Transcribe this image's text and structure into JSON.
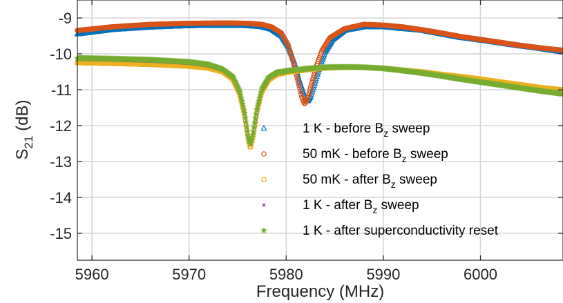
{
  "chart_data": {
    "type": "scatter",
    "xlabel": "Frequency (MHz)",
    "ylabel": {
      "main": "S",
      "sub": "21",
      "suffix": " (dB)"
    },
    "xlim": [
      5958.5,
      6008.5
    ],
    "ylim": [
      -15.75,
      -8.5
    ],
    "xticks": [
      5960,
      5970,
      5980,
      5990,
      6000
    ],
    "yticks": [
      -15,
      -14,
      -13,
      -12,
      -11,
      -10,
      -9
    ],
    "grid": true,
    "legend_position": "bottom-right",
    "series": [
      {
        "name": {
          "pre": "1 K - before B",
          "sub": "z",
          "post": " sweep"
        },
        "marker": "triangle",
        "color": "#0072BD",
        "points": [
          [
            5958.5,
            -9.45
          ],
          [
            5962,
            -9.33
          ],
          [
            5966,
            -9.26
          ],
          [
            5970,
            -9.22
          ],
          [
            5974,
            -9.21
          ],
          [
            5976,
            -9.22
          ],
          [
            5977.5,
            -9.25
          ],
          [
            5978.5,
            -9.32
          ],
          [
            5979.5,
            -9.5
          ],
          [
            5980.2,
            -9.8
          ],
          [
            5980.8,
            -10.2
          ],
          [
            5981.3,
            -10.7
          ],
          [
            5981.8,
            -11.1
          ],
          [
            5982.2,
            -11.33
          ],
          [
            5982.5,
            -11.2
          ],
          [
            5982.9,
            -10.85
          ],
          [
            5983.4,
            -10.4
          ],
          [
            5984,
            -9.95
          ],
          [
            5984.8,
            -9.6
          ],
          [
            5986,
            -9.35
          ],
          [
            5988,
            -9.25
          ],
          [
            5990,
            -9.25
          ],
          [
            5992,
            -9.3
          ],
          [
            5994,
            -9.35
          ],
          [
            5996,
            -9.45
          ],
          [
            5998,
            -9.55
          ],
          [
            6000,
            -9.62
          ],
          [
            6002,
            -9.7
          ],
          [
            6004,
            -9.78
          ],
          [
            6006,
            -9.85
          ],
          [
            6008.5,
            -9.95
          ]
        ]
      },
      {
        "name": {
          "pre": "50 mK - before B",
          "sub": "z",
          "post": " sweep"
        },
        "marker": "circle",
        "color": "#D95319",
        "points": [
          [
            5958.5,
            -9.35
          ],
          [
            5962,
            -9.25
          ],
          [
            5966,
            -9.18
          ],
          [
            5970,
            -9.15
          ],
          [
            5974,
            -9.14
          ],
          [
            5976,
            -9.15
          ],
          [
            5977.5,
            -9.18
          ],
          [
            5978.5,
            -9.25
          ],
          [
            5979.5,
            -9.42
          ],
          [
            5980.2,
            -9.75
          ],
          [
            5980.7,
            -10.2
          ],
          [
            5981.2,
            -10.75
          ],
          [
            5981.6,
            -11.2
          ],
          [
            5981.9,
            -11.4
          ],
          [
            5982.2,
            -11.25
          ],
          [
            5982.6,
            -10.85
          ],
          [
            5983.1,
            -10.35
          ],
          [
            5983.7,
            -9.9
          ],
          [
            5984.5,
            -9.55
          ],
          [
            5986,
            -9.3
          ],
          [
            5988,
            -9.18
          ],
          [
            5990,
            -9.2
          ],
          [
            5992,
            -9.25
          ],
          [
            5994,
            -9.33
          ],
          [
            5996,
            -9.42
          ],
          [
            5998,
            -9.52
          ],
          [
            6000,
            -9.6
          ],
          [
            6002,
            -9.68
          ],
          [
            6004,
            -9.76
          ],
          [
            6006,
            -9.83
          ],
          [
            6008.5,
            -9.9
          ]
        ]
      },
      {
        "name": {
          "pre": "50 mK - after B",
          "sub": "z",
          "post": " sweep"
        },
        "marker": "square",
        "color": "#EDB120",
        "points": [
          [
            5958.5,
            -10.25
          ],
          [
            5962,
            -10.27
          ],
          [
            5966,
            -10.3
          ],
          [
            5970,
            -10.35
          ],
          [
            5972,
            -10.4
          ],
          [
            5973.5,
            -10.5
          ],
          [
            5974.5,
            -10.7
          ],
          [
            5975.2,
            -11.1
          ],
          [
            5975.7,
            -11.7
          ],
          [
            5976.1,
            -12.4
          ],
          [
            5976.3,
            -12.62
          ],
          [
            5976.6,
            -12.3
          ],
          [
            5977,
            -11.6
          ],
          [
            5977.5,
            -11.05
          ],
          [
            5978.2,
            -10.72
          ],
          [
            5979,
            -10.58
          ],
          [
            5980,
            -10.52
          ],
          [
            5982,
            -10.45
          ],
          [
            5984,
            -10.4
          ],
          [
            5986,
            -10.38
          ],
          [
            5988,
            -10.38
          ],
          [
            5990,
            -10.4
          ],
          [
            5992,
            -10.45
          ],
          [
            5994,
            -10.5
          ],
          [
            5996,
            -10.57
          ],
          [
            5998,
            -10.63
          ],
          [
            6000,
            -10.7
          ],
          [
            6002,
            -10.78
          ],
          [
            6004,
            -10.85
          ],
          [
            6006,
            -10.93
          ],
          [
            6008.5,
            -11.0
          ]
        ]
      },
      {
        "name": {
          "pre": "1 K - after B",
          "sub": "z",
          "post": " sweep"
        },
        "marker": "x",
        "color": "#7E2F8E",
        "points": [
          [
            5958.5,
            -10.15
          ],
          [
            5962,
            -10.17
          ],
          [
            5966,
            -10.2
          ],
          [
            5970,
            -10.26
          ],
          [
            5972,
            -10.33
          ],
          [
            5973.5,
            -10.45
          ],
          [
            5974.5,
            -10.65
          ],
          [
            5975.2,
            -11.05
          ],
          [
            5975.7,
            -11.65
          ],
          [
            5976.1,
            -12.35
          ],
          [
            5976.3,
            -12.55
          ],
          [
            5976.6,
            -12.25
          ],
          [
            5977,
            -11.55
          ],
          [
            5977.5,
            -11.0
          ],
          [
            5978.2,
            -10.68
          ],
          [
            5979,
            -10.55
          ],
          [
            5980,
            -10.5
          ],
          [
            5982,
            -10.43
          ],
          [
            5984,
            -10.39
          ],
          [
            5986,
            -10.38
          ],
          [
            5988,
            -10.39
          ],
          [
            5990,
            -10.42
          ],
          [
            5992,
            -10.48
          ],
          [
            5994,
            -10.55
          ],
          [
            5996,
            -10.63
          ],
          [
            5998,
            -10.72
          ],
          [
            6000,
            -10.8
          ],
          [
            6002,
            -10.88
          ],
          [
            6004,
            -10.96
          ],
          [
            6006,
            -11.04
          ],
          [
            6008.5,
            -11.12
          ]
        ]
      },
      {
        "name": {
          "pre": "1 K - after superconductivity reset",
          "sub": "",
          "post": ""
        },
        "marker": "star",
        "color": "#77AC30",
        "points": [
          [
            5958.5,
            -10.12
          ],
          [
            5962,
            -10.14
          ],
          [
            5966,
            -10.17
          ],
          [
            5970,
            -10.23
          ],
          [
            5972,
            -10.3
          ],
          [
            5973.5,
            -10.43
          ],
          [
            5974.5,
            -10.63
          ],
          [
            5975.2,
            -11.03
          ],
          [
            5975.7,
            -11.62
          ],
          [
            5976.1,
            -12.32
          ],
          [
            5976.3,
            -12.52
          ],
          [
            5976.6,
            -12.22
          ],
          [
            5977,
            -11.52
          ],
          [
            5977.5,
            -10.97
          ],
          [
            5978.2,
            -10.65
          ],
          [
            5979,
            -10.52
          ],
          [
            5980,
            -10.48
          ],
          [
            5982,
            -10.42
          ],
          [
            5984,
            -10.38
          ],
          [
            5986,
            -10.37
          ],
          [
            5988,
            -10.38
          ],
          [
            5990,
            -10.41
          ],
          [
            5992,
            -10.47
          ],
          [
            5994,
            -10.54
          ],
          [
            5996,
            -10.62
          ],
          [
            5998,
            -10.71
          ],
          [
            6000,
            -10.79
          ],
          [
            6002,
            -10.87
          ],
          [
            6004,
            -10.95
          ],
          [
            6006,
            -11.03
          ],
          [
            6008.5,
            -11.12
          ]
        ]
      }
    ]
  }
}
